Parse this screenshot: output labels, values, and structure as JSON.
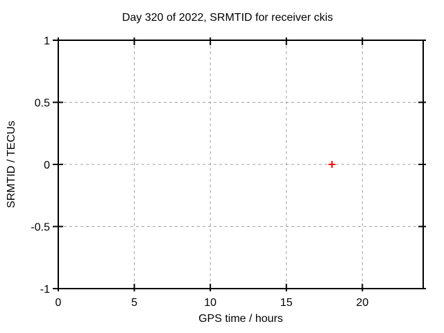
{
  "chart_data": {
    "type": "scatter",
    "title": "Day 320 of 2022, SRMTID for receiver ckis",
    "xlabel": "GPS time / hours",
    "ylabel": "SRMTID / TECUs",
    "xlim": [
      0,
      24
    ],
    "ylim": [
      -1,
      1
    ],
    "xticks": {
      "values": [
        0,
        5,
        10,
        15,
        20
      ],
      "labels": [
        "0",
        "5",
        "10",
        "15",
        "20"
      ]
    },
    "yticks": {
      "values": [
        -1,
        -0.5,
        0,
        0.5,
        1
      ],
      "labels": [
        "-1",
        "-0.5",
        "0",
        "0.5",
        "1"
      ]
    },
    "grid": true,
    "legend": "none",
    "series": [
      {
        "name": "SRMTID",
        "marker": "plus",
        "color": "#ff0000",
        "points": [
          {
            "x": 18,
            "y": 0
          }
        ]
      }
    ],
    "colors": {
      "background": "#ffffff",
      "axis": "#000000",
      "grid": "#a0a0a0",
      "text": "#000000"
    }
  }
}
